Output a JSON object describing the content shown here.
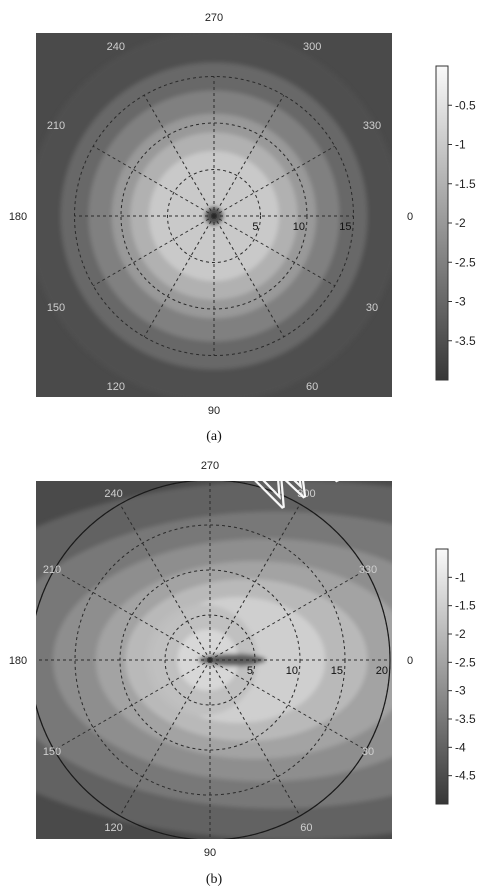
{
  "chart_data": [
    {
      "type": "heatmap",
      "subtype": "polar-contour",
      "caption": "(a)",
      "angle_labels": [
        "0",
        "30",
        "60",
        "90",
        "120",
        "150",
        "180",
        "210",
        "240",
        "270",
        "300",
        "330"
      ],
      "radial_ticks": [
        5,
        10,
        15
      ],
      "radial_labels": [
        "5",
        "10",
        "15"
      ],
      "rlim": [
        0,
        20
      ],
      "colorbar": {
        "ticks": [
          -0.5,
          -1,
          -1.5,
          -2,
          -2.5,
          -3,
          -3.5
        ],
        "labels": [
          "-0.5",
          "-1",
          "-1.5",
          "-2",
          "-2.5",
          "-3",
          "-3.5"
        ],
        "range": [
          -4,
          0
        ]
      },
      "contour_levels": [
        {
          "r": 20,
          "value": -3.5
        },
        {
          "r": 16.5,
          "value": -3.0
        },
        {
          "r": 13.5,
          "value": -2.5
        },
        {
          "r": 11,
          "value": -2.0
        },
        {
          "r": 9,
          "value": -1.5
        },
        {
          "r": 7,
          "value": -1.0
        },
        {
          "r": 1,
          "value": -3.5
        }
      ],
      "source_offset": 0,
      "grid": true
    },
    {
      "type": "heatmap",
      "subtype": "polar-contour",
      "caption": "(b)",
      "angle_labels": [
        "0",
        "30",
        "60",
        "90",
        "120",
        "150",
        "180",
        "210",
        "240",
        "270",
        "300",
        "330"
      ],
      "radial_ticks": [
        5,
        10,
        15,
        20
      ],
      "radial_labels": [
        "5",
        "10",
        "15",
        "20"
      ],
      "rlim": [
        0,
        20
      ],
      "colorbar": {
        "ticks": [
          -1,
          -1.5,
          -2,
          -2.5,
          -3,
          -3.5,
          -4,
          -4.5
        ],
        "labels": [
          "-1",
          "-1.5",
          "-2",
          "-2.5",
          "-3",
          "-3.5",
          "-4",
          "-4.5"
        ],
        "range": [
          -5,
          -0.5
        ]
      },
      "contour_levels": [
        {
          "r": 20,
          "value": -4.0
        },
        {
          "r": 16.5,
          "value": -3.5
        },
        {
          "r": 13.5,
          "value": -3.0
        },
        {
          "r": 11,
          "value": -2.5
        },
        {
          "r": 9,
          "value": -2.0
        },
        {
          "r": 7,
          "value": -1.5
        },
        {
          "r": 1,
          "value": -4.0
        }
      ],
      "source_offset": 9,
      "grid": true
    }
  ],
  "watermark": "WWW"
}
